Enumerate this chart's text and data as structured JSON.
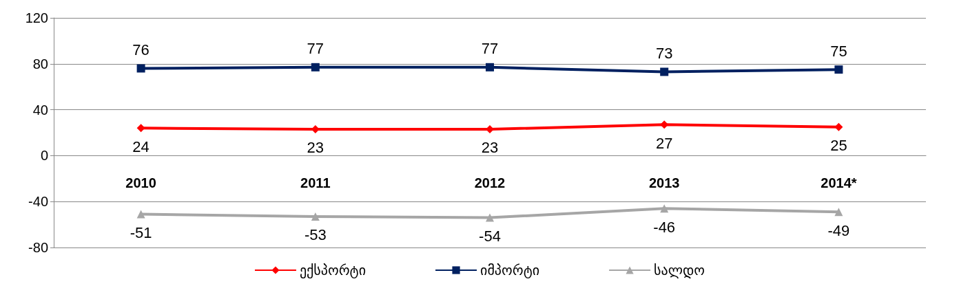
{
  "chart_data": {
    "type": "line",
    "categories": [
      "2010",
      "2011",
      "2012",
      "2013",
      "2014*"
    ],
    "series": [
      {
        "name": "ექსპორტი",
        "color": "#ff0000",
        "marker": "diamond",
        "values": [
          24,
          23,
          23,
          27,
          25
        ]
      },
      {
        "name": "იმპორტი",
        "color": "#002060",
        "marker": "square",
        "values": [
          76,
          77,
          77,
          73,
          75
        ]
      },
      {
        "name": "სალდო",
        "color": "#a6a6a6",
        "marker": "triangle",
        "values": [
          -51,
          -53,
          -54,
          -46,
          -49
        ]
      }
    ],
    "ylim": [
      -80,
      120
    ],
    "yticks": [
      -80,
      -40,
      0,
      40,
      80,
      120
    ],
    "grid": "y",
    "legend": "bottom",
    "data_labels": true
  }
}
